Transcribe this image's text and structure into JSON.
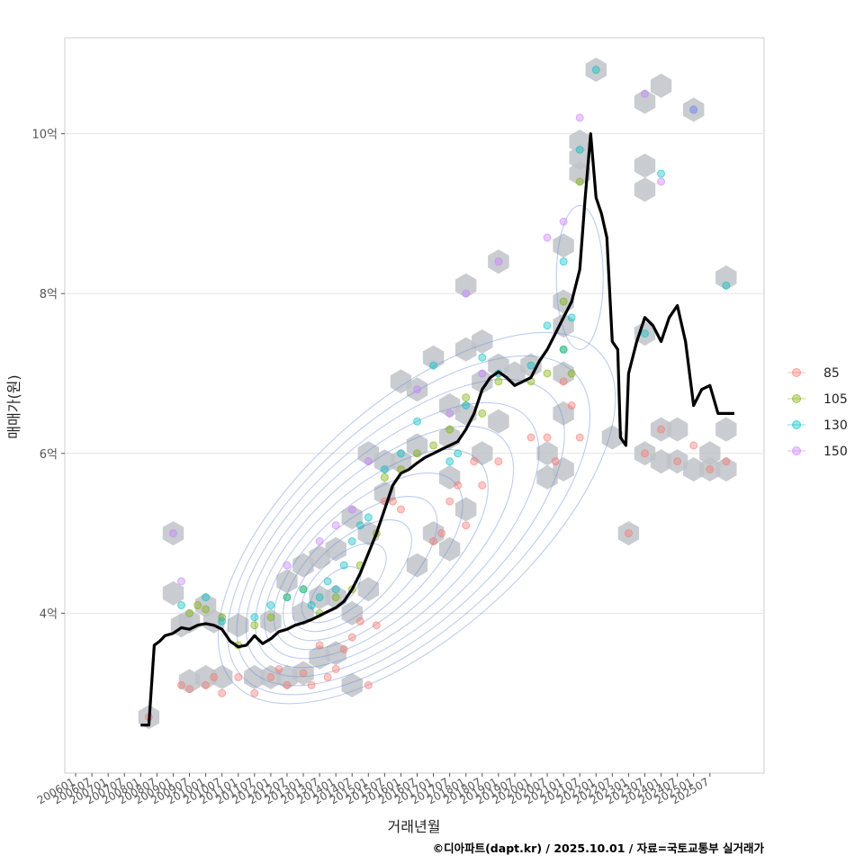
{
  "chart_data": {
    "type": "scatter",
    "xlabel": "거래년월",
    "ylabel": "매매가(원)",
    "caption": "©디아파트(dapt.kr) / 2025.10.01 / 자료=국토교통부 실거래가",
    "x_ticks": [
      "200601",
      "200607",
      "200701",
      "200707",
      "200801",
      "200807",
      "200901",
      "200907",
      "201001",
      "201007",
      "201101",
      "201107",
      "201201",
      "201207",
      "201301",
      "201307",
      "201401",
      "201407",
      "201501",
      "201507",
      "201601",
      "201607",
      "201701",
      "201707",
      "201801",
      "201807",
      "201901",
      "201907",
      "202001",
      "202007",
      "202101",
      "202107",
      "202201",
      "202207",
      "202301",
      "202307",
      "202401",
      "202407",
      "202501",
      "202507"
    ],
    "y_ticks": [
      {
        "value": 4,
        "label": "4억"
      },
      {
        "value": 6,
        "label": "6억"
      },
      {
        "value": 8,
        "label": "8억"
      },
      {
        "value": 10,
        "label": "10억"
      }
    ],
    "ylim": [
      2.0,
      11.2
    ],
    "x_domain": [
      "2005-09",
      "2027-03"
    ],
    "grid": "horizontal",
    "legend": {
      "position": "right",
      "entries": [
        {
          "label": "85",
          "color": "#F8766D"
        },
        {
          "label": "105",
          "color": "#7CAE00"
        },
        {
          "label": "130",
          "color": "#00BFC4"
        },
        {
          "label": "150",
          "color": "#C77CFF"
        }
      ]
    },
    "trend_line": {
      "color": "#000000",
      "points": [
        [
          "2008-01",
          2.6
        ],
        [
          "2008-04",
          2.6
        ],
        [
          "2008-06",
          3.6
        ],
        [
          "2008-08",
          3.65
        ],
        [
          "2008-10",
          3.72
        ],
        [
          "2009-01",
          3.75
        ],
        [
          "2009-04",
          3.82
        ],
        [
          "2009-07",
          3.8
        ],
        [
          "2009-10",
          3.85
        ],
        [
          "2010-01",
          3.87
        ],
        [
          "2010-04",
          3.85
        ],
        [
          "2010-07",
          3.8
        ],
        [
          "2010-10",
          3.65
        ],
        [
          "2011-01",
          3.58
        ],
        [
          "2011-04",
          3.6
        ],
        [
          "2011-07",
          3.72
        ],
        [
          "2011-10",
          3.62
        ],
        [
          "2012-01",
          3.68
        ],
        [
          "2012-04",
          3.77
        ],
        [
          "2012-07",
          3.8
        ],
        [
          "2012-10",
          3.85
        ],
        [
          "2013-01",
          3.88
        ],
        [
          "2013-04",
          3.92
        ],
        [
          "2013-07",
          3.97
        ],
        [
          "2013-10",
          4.02
        ],
        [
          "2014-01",
          4.07
        ],
        [
          "2014-04",
          4.15
        ],
        [
          "2014-07",
          4.3
        ],
        [
          "2014-10",
          4.5
        ],
        [
          "2015-01",
          4.75
        ],
        [
          "2015-04",
          5.0
        ],
        [
          "2015-07",
          5.3
        ],
        [
          "2015-10",
          5.6
        ],
        [
          "2016-01",
          5.75
        ],
        [
          "2016-04",
          5.8
        ],
        [
          "2016-07",
          5.88
        ],
        [
          "2016-10",
          5.95
        ],
        [
          "2017-01",
          6.0
        ],
        [
          "2017-04",
          6.05
        ],
        [
          "2017-07",
          6.1
        ],
        [
          "2017-10",
          6.15
        ],
        [
          "2018-01",
          6.3
        ],
        [
          "2018-04",
          6.5
        ],
        [
          "2018-07",
          6.8
        ],
        [
          "2018-10",
          6.95
        ],
        [
          "2019-01",
          7.02
        ],
        [
          "2019-04",
          6.95
        ],
        [
          "2019-07",
          6.85
        ],
        [
          "2019-10",
          6.9
        ],
        [
          "2020-01",
          6.95
        ],
        [
          "2020-04",
          7.15
        ],
        [
          "2020-07",
          7.3
        ],
        [
          "2020-10",
          7.5
        ],
        [
          "2021-01",
          7.7
        ],
        [
          "2021-04",
          7.9
        ],
        [
          "2021-07",
          8.3
        ],
        [
          "2021-09",
          9.2
        ],
        [
          "2021-11",
          10.0
        ],
        [
          "2022-01",
          9.2
        ],
        [
          "2022-03",
          9.0
        ],
        [
          "2022-05",
          8.7
        ],
        [
          "2022-07",
          7.4
        ],
        [
          "2022-09",
          7.3
        ],
        [
          "2022-10",
          6.2
        ],
        [
          "2022-12",
          6.1
        ],
        [
          "2023-01",
          7.0
        ],
        [
          "2023-04",
          7.4
        ],
        [
          "2023-07",
          7.7
        ],
        [
          "2023-10",
          7.6
        ],
        [
          "2024-01",
          7.4
        ],
        [
          "2024-04",
          7.7
        ],
        [
          "2024-07",
          7.85
        ],
        [
          "2024-10",
          7.4
        ],
        [
          "2025-01",
          6.6
        ],
        [
          "2025-04",
          6.8
        ],
        [
          "2025-07",
          6.85
        ],
        [
          "2025-10",
          6.5
        ],
        [
          "2026-04",
          6.5
        ]
      ]
    },
    "density_center": [
      "2013-10",
      4.2
    ],
    "hexbins": [
      [
        "2008-04",
        2.7
      ],
      [
        "2009-01",
        5.0
      ],
      [
        "2009-01",
        4.25
      ],
      [
        "2009-04",
        3.85
      ],
      [
        "2009-07",
        3.9
      ],
      [
        "2009-07",
        3.15
      ],
      [
        "2010-01",
        4.1
      ],
      [
        "2010-01",
        3.2
      ],
      [
        "2010-04",
        3.9
      ],
      [
        "2010-07",
        3.2
      ],
      [
        "2011-01",
        3.85
      ],
      [
        "2011-07",
        3.2
      ],
      [
        "2012-01",
        3.9
      ],
      [
        "2012-01",
        3.2
      ],
      [
        "2012-07",
        4.4
      ],
      [
        "2012-07",
        3.2
      ],
      [
        "2013-01",
        4.6
      ],
      [
        "2013-01",
        4.0
      ],
      [
        "2013-01",
        3.25
      ],
      [
        "2013-07",
        4.7
      ],
      [
        "2013-07",
        4.2
      ],
      [
        "2013-07",
        3.45
      ],
      [
        "2014-01",
        4.8
      ],
      [
        "2014-01",
        4.2
      ],
      [
        "2014-01",
        3.5
      ],
      [
        "2014-07",
        5.2
      ],
      [
        "2014-07",
        4.0
      ],
      [
        "2014-07",
        3.1
      ],
      [
        "2015-01",
        5.0
      ],
      [
        "2015-01",
        4.3
      ],
      [
        "2015-01",
        6.0
      ],
      [
        "2015-07",
        5.5
      ],
      [
        "2015-07",
        5.9
      ],
      [
        "2016-01",
        6.9
      ],
      [
        "2016-01",
        5.9
      ],
      [
        "2016-07",
        6.8
      ],
      [
        "2016-07",
        6.1
      ],
      [
        "2016-07",
        4.6
      ],
      [
        "2017-01",
        7.2
      ],
      [
        "2017-01",
        5.0
      ],
      [
        "2017-07",
        6.6
      ],
      [
        "2017-07",
        6.2
      ],
      [
        "2017-07",
        5.7
      ],
      [
        "2017-07",
        4.8
      ],
      [
        "2018-01",
        8.1
      ],
      [
        "2018-01",
        7.3
      ],
      [
        "2018-01",
        6.5
      ],
      [
        "2018-01",
        5.3
      ],
      [
        "2018-07",
        7.4
      ],
      [
        "2018-07",
        6.9
      ],
      [
        "2018-07",
        6.0
      ],
      [
        "2019-01",
        8.4
      ],
      [
        "2019-01",
        7.1
      ],
      [
        "2019-01",
        6.4
      ],
      [
        "2019-07",
        7.0
      ],
      [
        "2020-01",
        7.1
      ],
      [
        "2020-07",
        6.0
      ],
      [
        "2020-07",
        5.7
      ],
      [
        "2021-01",
        8.6
      ],
      [
        "2021-01",
        7.9
      ],
      [
        "2021-01",
        7.6
      ],
      [
        "2021-01",
        7.0
      ],
      [
        "2021-01",
        6.5
      ],
      [
        "2021-01",
        5.8
      ],
      [
        "2021-07",
        9.9
      ],
      [
        "2021-07",
        9.7
      ],
      [
        "2021-07",
        9.5
      ],
      [
        "2022-01",
        10.8
      ],
      [
        "2022-07",
        6.2
      ],
      [
        "2023-01",
        5.0
      ],
      [
        "2023-07",
        10.4
      ],
      [
        "2023-07",
        9.6
      ],
      [
        "2023-07",
        9.3
      ],
      [
        "2023-07",
        7.5
      ],
      [
        "2023-07",
        6.0
      ],
      [
        "2024-01",
        10.6
      ],
      [
        "2024-01",
        6.3
      ],
      [
        "2024-01",
        5.9
      ],
      [
        "2024-07",
        6.3
      ],
      [
        "2024-07",
        5.9
      ],
      [
        "2025-01",
        10.3
      ],
      [
        "2025-01",
        5.8
      ],
      [
        "2025-07",
        6.0
      ],
      [
        "2025-07",
        5.8
      ],
      [
        "2026-01",
        8.2
      ],
      [
        "2026-01",
        6.3
      ],
      [
        "2026-01",
        5.8
      ]
    ],
    "series": [
      {
        "name": "85",
        "points": [
          [
            "2008-04",
            2.7
          ],
          [
            "2009-04",
            3.1
          ],
          [
            "2009-07",
            3.05
          ],
          [
            "2010-01",
            3.1
          ],
          [
            "2010-04",
            3.2
          ],
          [
            "2010-07",
            3.0
          ],
          [
            "2011-01",
            3.2
          ],
          [
            "2011-07",
            3.0
          ],
          [
            "2012-01",
            3.2
          ],
          [
            "2012-04",
            3.3
          ],
          [
            "2012-07",
            3.1
          ],
          [
            "2013-01",
            3.25
          ],
          [
            "2013-04",
            3.1
          ],
          [
            "2013-07",
            3.6
          ],
          [
            "2013-10",
            3.2
          ],
          [
            "2014-01",
            3.3
          ],
          [
            "2014-04",
            3.55
          ],
          [
            "2014-07",
            3.7
          ],
          [
            "2014-10",
            3.9
          ],
          [
            "2015-01",
            3.1
          ],
          [
            "2015-04",
            3.85
          ],
          [
            "2015-07",
            5.4
          ],
          [
            "2015-10",
            5.4
          ],
          [
            "2016-01",
            5.3
          ],
          [
            "2017-01",
            4.9
          ],
          [
            "2017-04",
            5.0
          ],
          [
            "2017-07",
            5.4
          ],
          [
            "2017-10",
            5.6
          ],
          [
            "2018-01",
            5.1
          ],
          [
            "2018-04",
            5.9
          ],
          [
            "2018-07",
            5.6
          ],
          [
            "2019-01",
            5.9
          ],
          [
            "2020-01",
            6.2
          ],
          [
            "2020-07",
            6.2
          ],
          [
            "2020-10",
            5.9
          ],
          [
            "2021-01",
            6.9
          ],
          [
            "2021-04",
            6.6
          ],
          [
            "2021-07",
            6.2
          ],
          [
            "2023-01",
            5.0
          ],
          [
            "2023-07",
            6.0
          ],
          [
            "2024-01",
            6.3
          ],
          [
            "2024-07",
            5.9
          ],
          [
            "2025-01",
            6.1
          ],
          [
            "2025-07",
            5.8
          ],
          [
            "2026-01",
            5.9
          ]
        ]
      },
      {
        "name": "105",
        "points": [
          [
            "2009-07",
            4.0
          ],
          [
            "2009-10",
            4.1
          ],
          [
            "2010-01",
            4.05
          ],
          [
            "2010-07",
            3.95
          ],
          [
            "2011-01",
            3.6
          ],
          [
            "2011-07",
            3.85
          ],
          [
            "2012-01",
            3.95
          ],
          [
            "2012-07",
            4.2
          ],
          [
            "2013-01",
            4.3
          ],
          [
            "2013-07",
            4.0
          ],
          [
            "2014-01",
            4.2
          ],
          [
            "2014-07",
            4.3
          ],
          [
            "2014-10",
            4.6
          ],
          [
            "2015-04",
            5.0
          ],
          [
            "2015-07",
            5.7
          ],
          [
            "2016-01",
            5.8
          ],
          [
            "2016-07",
            6.0
          ],
          [
            "2017-01",
            6.1
          ],
          [
            "2017-07",
            6.3
          ],
          [
            "2018-01",
            6.7
          ],
          [
            "2018-07",
            6.5
          ],
          [
            "2019-01",
            6.9
          ],
          [
            "2020-01",
            6.9
          ],
          [
            "2020-07",
            7.0
          ],
          [
            "2021-01",
            7.3
          ],
          [
            "2021-01",
            7.9
          ],
          [
            "2021-04",
            7.0
          ],
          [
            "2021-07",
            9.4
          ]
        ]
      },
      {
        "name": "130",
        "points": [
          [
            "2009-04",
            4.1
          ],
          [
            "2010-01",
            4.2
          ],
          [
            "2010-07",
            3.9
          ],
          [
            "2011-07",
            3.95
          ],
          [
            "2012-01",
            4.1
          ],
          [
            "2012-07",
            4.2
          ],
          [
            "2013-01",
            4.3
          ],
          [
            "2013-04",
            4.1
          ],
          [
            "2013-07",
            4.2
          ],
          [
            "2013-10",
            4.4
          ],
          [
            "2014-01",
            4.3
          ],
          [
            "2014-04",
            4.6
          ],
          [
            "2014-07",
            4.9
          ],
          [
            "2014-10",
            5.1
          ],
          [
            "2015-01",
            5.2
          ],
          [
            "2015-07",
            5.8
          ],
          [
            "2016-01",
            6.0
          ],
          [
            "2016-07",
            6.4
          ],
          [
            "2017-01",
            7.1
          ],
          [
            "2017-07",
            5.9
          ],
          [
            "2017-10",
            6.0
          ],
          [
            "2018-01",
            6.6
          ],
          [
            "2018-07",
            7.2
          ],
          [
            "2019-01",
            7.0
          ],
          [
            "2020-01",
            7.1
          ],
          [
            "2020-07",
            7.6
          ],
          [
            "2021-01",
            7.3
          ],
          [
            "2021-01",
            8.4
          ],
          [
            "2021-04",
            7.7
          ],
          [
            "2021-07",
            9.8
          ],
          [
            "2022-01",
            10.8
          ],
          [
            "2023-07",
            7.5
          ],
          [
            "2024-01",
            9.5
          ],
          [
            "2025-01",
            10.3
          ],
          [
            "2026-01",
            8.1
          ]
        ]
      },
      {
        "name": "150",
        "points": [
          [
            "2009-01",
            5.0
          ],
          [
            "2009-04",
            4.4
          ],
          [
            "2012-07",
            4.6
          ],
          [
            "2013-07",
            4.9
          ],
          [
            "2014-01",
            5.1
          ],
          [
            "2014-07",
            5.3
          ],
          [
            "2015-01",
            5.9
          ],
          [
            "2016-07",
            6.8
          ],
          [
            "2017-07",
            6.5
          ],
          [
            "2018-01",
            8.0
          ],
          [
            "2018-07",
            7.0
          ],
          [
            "2019-01",
            8.4
          ],
          [
            "2020-07",
            8.7
          ],
          [
            "2021-01",
            8.9
          ],
          [
            "2021-07",
            10.2
          ],
          [
            "2023-07",
            10.5
          ],
          [
            "2024-01",
            9.4
          ],
          [
            "2025-01",
            10.3
          ]
        ]
      }
    ]
  }
}
